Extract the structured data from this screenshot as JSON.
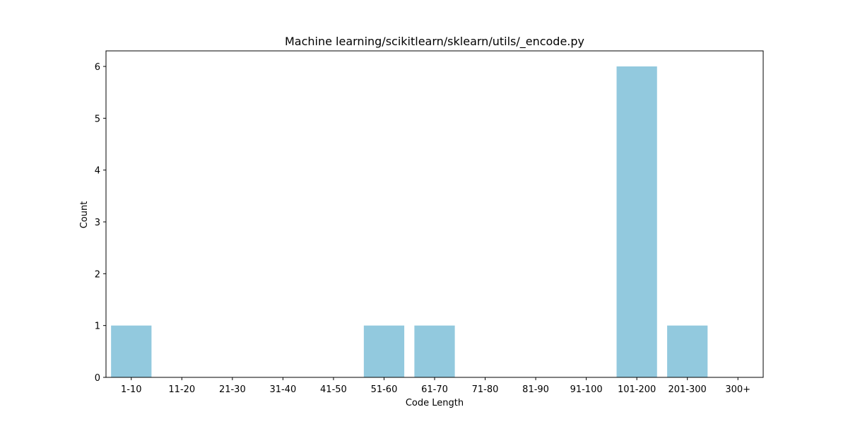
{
  "chart_data": {
    "type": "bar",
    "title": "Machine learning/scikitlearn/sklearn/utils/_encode.py",
    "xlabel": "Code Length",
    "ylabel": "Count",
    "categories": [
      "1-10",
      "11-20",
      "21-30",
      "31-40",
      "41-50",
      "51-60",
      "61-70",
      "71-80",
      "81-90",
      "91-100",
      "101-200",
      "201-300",
      "300+"
    ],
    "values": [
      1,
      0,
      0,
      0,
      0,
      1,
      1,
      0,
      0,
      0,
      6,
      1,
      0
    ],
    "ylim": [
      0,
      6.3
    ],
    "yticks": [
      0,
      1,
      2,
      3,
      4,
      5,
      6
    ],
    "grid": false,
    "bar_color": "#92c9de"
  }
}
